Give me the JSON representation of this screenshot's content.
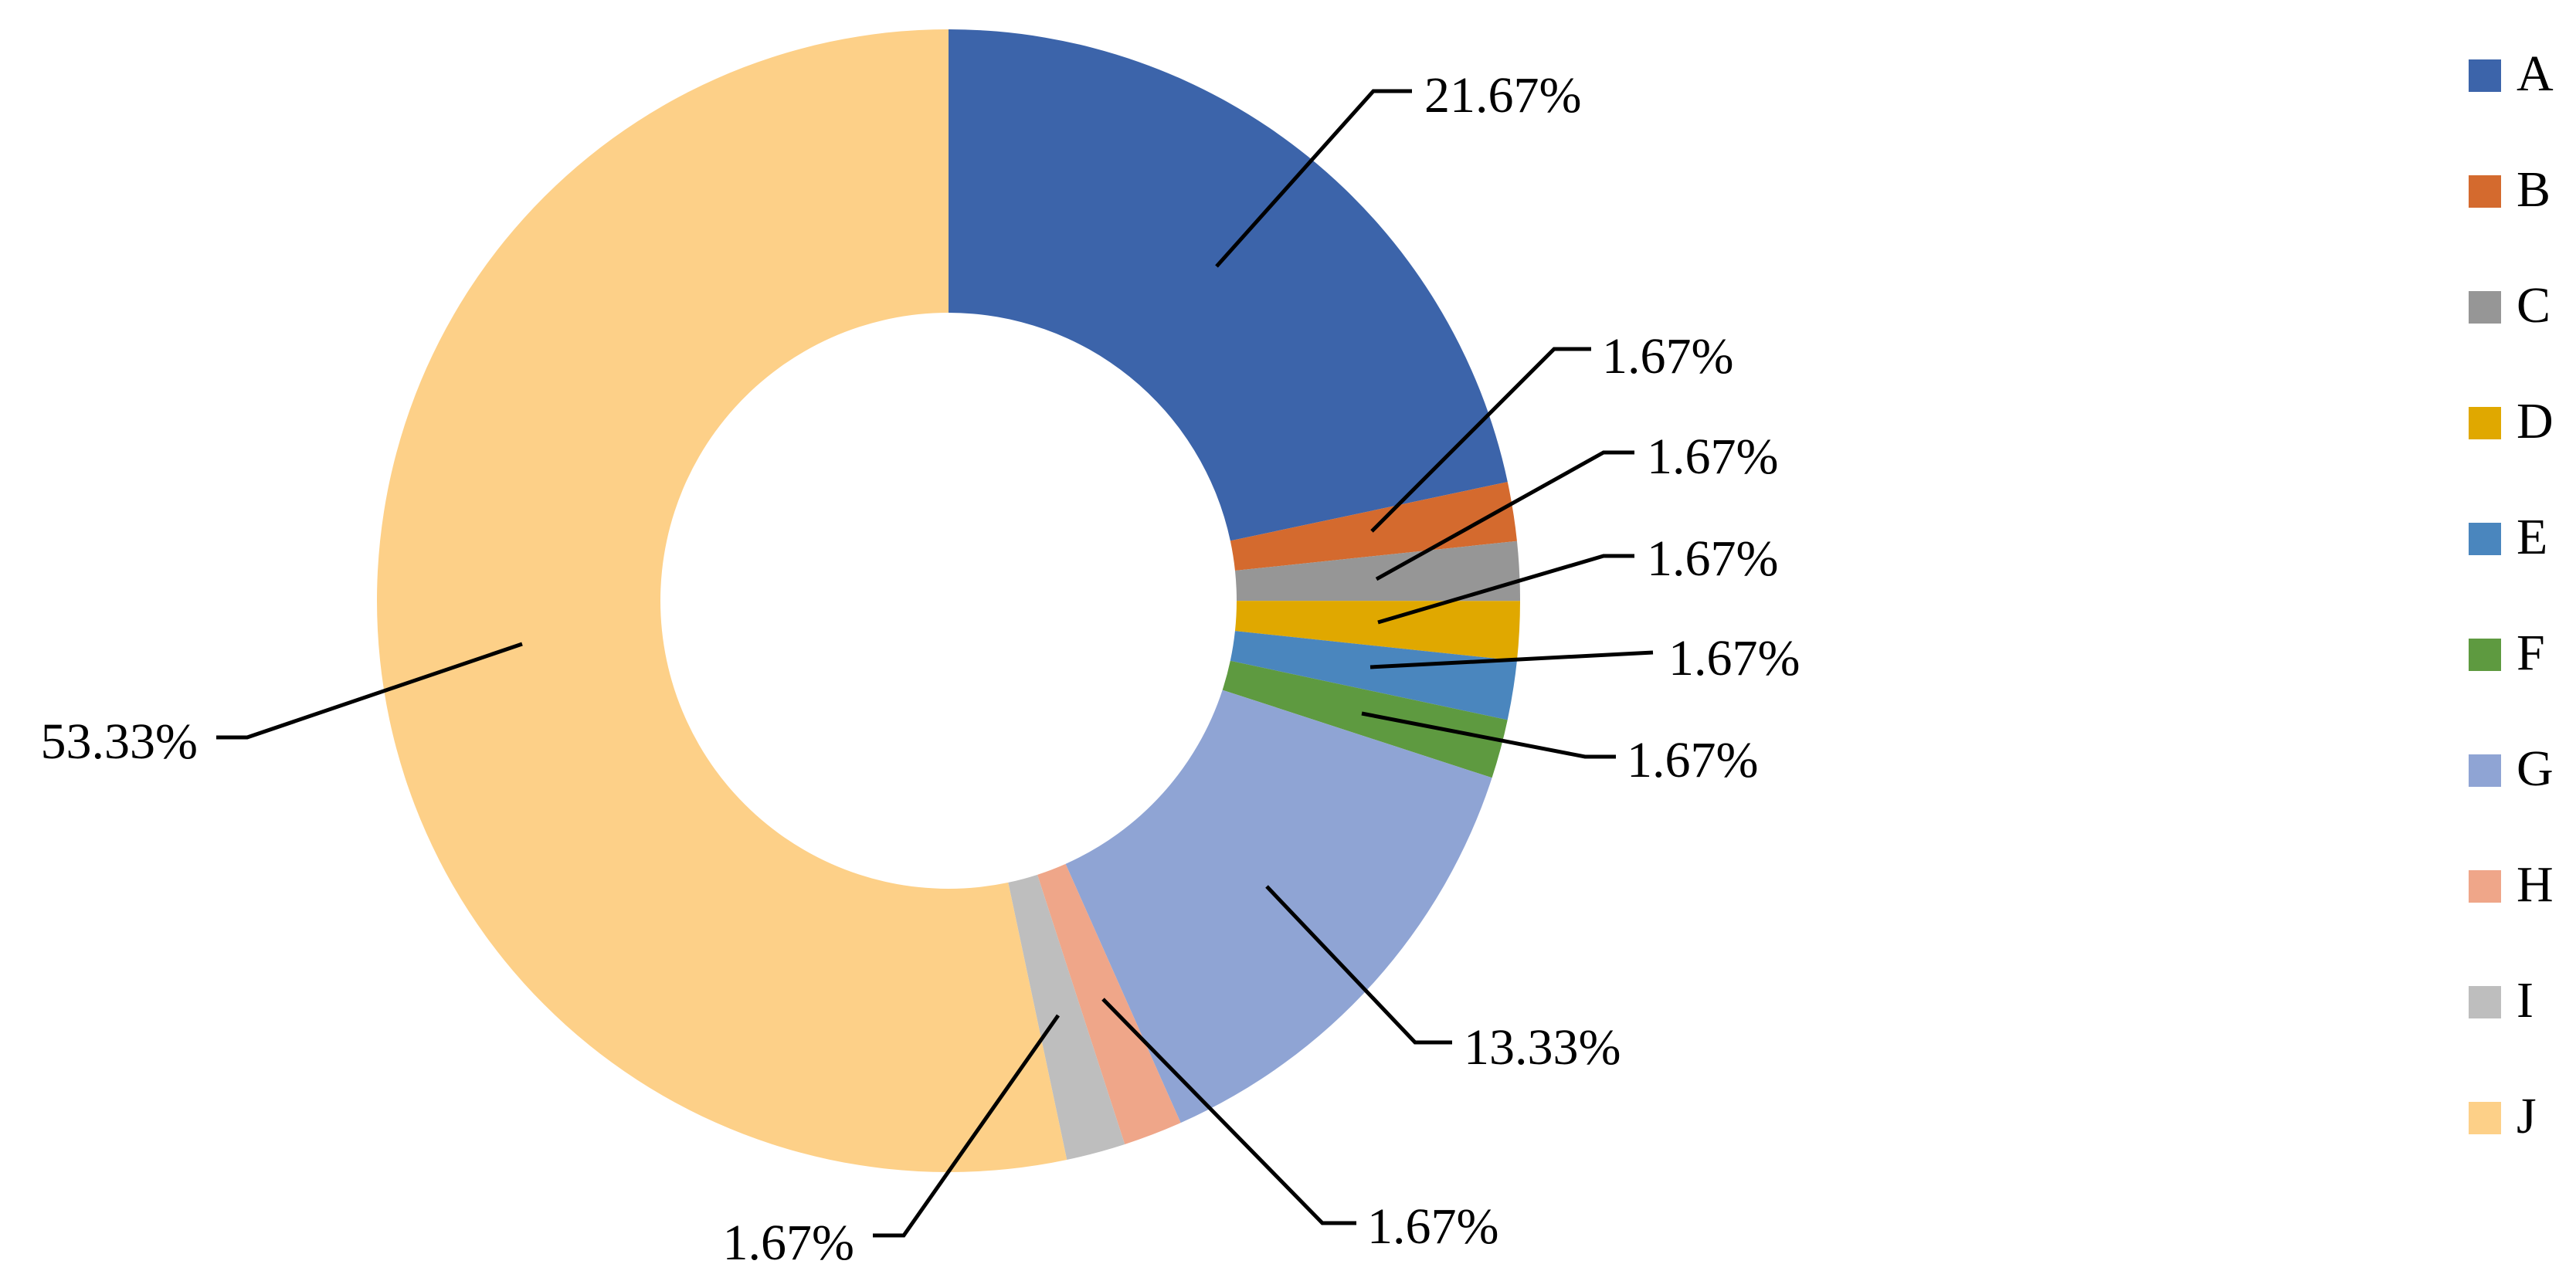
{
  "chart_data": {
    "type": "pie",
    "variant": "donut",
    "categories": [
      "A",
      "B",
      "C",
      "D",
      "E",
      "F",
      "G",
      "H",
      "I",
      "J"
    ],
    "values": [
      21.67,
      1.67,
      1.67,
      1.67,
      1.67,
      1.67,
      13.33,
      1.67,
      1.67,
      53.33
    ],
    "data_labels": [
      "21.67%",
      "1.67%",
      "1.67%",
      "1.67%",
      "1.67%",
      "1.67%",
      "13.33%",
      "1.67%",
      "1.67%",
      "53.33%"
    ],
    "colors": [
      "#3C64AA",
      "#D46A2E",
      "#969696",
      "#E0A800",
      "#4A86BE",
      "#5E9A40",
      "#8FA4D4",
      "#EFA689",
      "#BEBEBE",
      "#FDD088"
    ],
    "legend": {
      "position": "right"
    }
  }
}
